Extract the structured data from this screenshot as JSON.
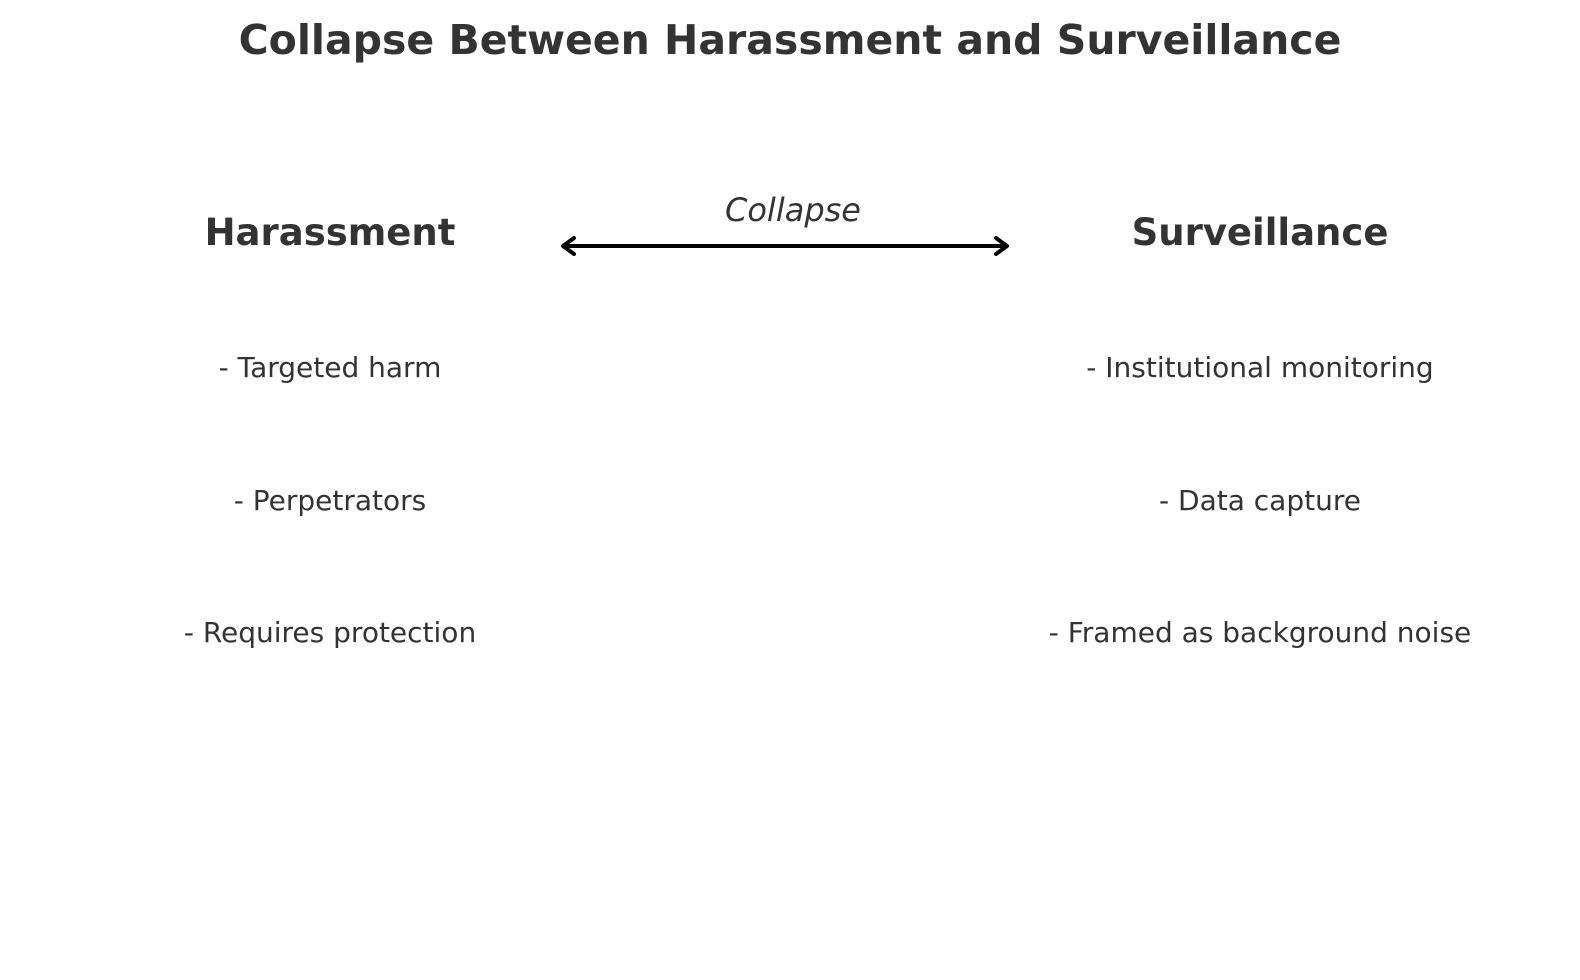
{
  "diagram": {
    "title": "Collapse Between Harassment and Surveillance",
    "relation_label": "Collapse",
    "relation_direction": "bidirectional",
    "left": {
      "heading": "Harassment",
      "items": [
        "- Targeted harm",
        "- Perpetrators",
        "- Requires protection"
      ]
    },
    "right": {
      "heading": "Surveillance",
      "items": [
        "- Institutional monitoring",
        "- Data capture",
        "- Framed as background noise"
      ]
    },
    "colors": {
      "text": "#333333",
      "arrow": "#000000",
      "background": "#ffffff"
    }
  }
}
